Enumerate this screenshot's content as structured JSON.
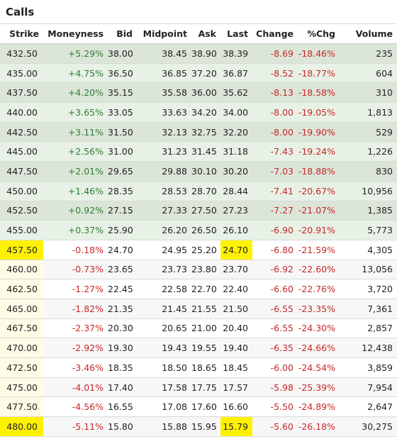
{
  "title": "Calls",
  "columns": [
    "Strike",
    "Moneyness",
    "Bid",
    "Midpoint",
    "Ask",
    "Last",
    "Change",
    "%Chg",
    "Volume"
  ],
  "rows": [
    {
      "strike": "432.50",
      "moneyness": "+5.29%",
      "bid": "38.00",
      "mid": "38.45",
      "ask": "38.90",
      "last": "38.39",
      "change": "-8.69",
      "pct": "-18.46%",
      "volume": "235",
      "itm": true
    },
    {
      "strike": "435.00",
      "moneyness": "+4.75%",
      "bid": "36.50",
      "mid": "36.85",
      "ask": "37.20",
      "last": "36.87",
      "change": "-8.52",
      "pct": "-18.77%",
      "volume": "604",
      "itm": true
    },
    {
      "strike": "437.50",
      "moneyness": "+4.20%",
      "bid": "35.15",
      "mid": "35.58",
      "ask": "36.00",
      "last": "35.62",
      "change": "-8.13",
      "pct": "-18.58%",
      "volume": "310",
      "itm": true
    },
    {
      "strike": "440.00",
      "moneyness": "+3.65%",
      "bid": "33.05",
      "mid": "33.63",
      "ask": "34.20",
      "last": "34.00",
      "change": "-8.00",
      "pct": "-19.05%",
      "volume": "1,813",
      "itm": true
    },
    {
      "strike": "442.50",
      "moneyness": "+3.11%",
      "bid": "31.50",
      "mid": "32.13",
      "ask": "32.75",
      "last": "32.20",
      "change": "-8.00",
      "pct": "-19.90%",
      "volume": "529",
      "itm": true
    },
    {
      "strike": "445.00",
      "moneyness": "+2.56%",
      "bid": "31.00",
      "mid": "31.23",
      "ask": "31.45",
      "last": "31.18",
      "change": "-7.43",
      "pct": "-19.24%",
      "volume": "1,226",
      "itm": true
    },
    {
      "strike": "447.50",
      "moneyness": "+2.01%",
      "bid": "29.65",
      "mid": "29.88",
      "ask": "30.10",
      "last": "30.20",
      "change": "-7.03",
      "pct": "-18.88%",
      "volume": "830",
      "itm": true
    },
    {
      "strike": "450.00",
      "moneyness": "+1.46%",
      "bid": "28.35",
      "mid": "28.53",
      "ask": "28.70",
      "last": "28.44",
      "change": "-7.41",
      "pct": "-20.67%",
      "volume": "10,956",
      "itm": true
    },
    {
      "strike": "452.50",
      "moneyness": "+0.92%",
      "bid": "27.15",
      "mid": "27.33",
      "ask": "27.50",
      "last": "27.23",
      "change": "-7.27",
      "pct": "-21.07%",
      "volume": "1,385",
      "itm": true
    },
    {
      "strike": "455.00",
      "moneyness": "+0.37%",
      "bid": "25.90",
      "mid": "26.20",
      "ask": "26.50",
      "last": "26.10",
      "change": "-6.90",
      "pct": "-20.91%",
      "volume": "5,773",
      "itm": true
    },
    {
      "strike": "457.50",
      "moneyness": "-0.18%",
      "bid": "24.70",
      "mid": "24.95",
      "ask": "25.20",
      "last": "24.70",
      "change": "-6.80",
      "pct": "-21.59%",
      "volume": "4,305",
      "itm": false,
      "highlight": true
    },
    {
      "strike": "460.00",
      "moneyness": "-0.73%",
      "bid": "23.65",
      "mid": "23.73",
      "ask": "23.80",
      "last": "23.70",
      "change": "-6.92",
      "pct": "-22.60%",
      "volume": "13,056",
      "itm": false
    },
    {
      "strike": "462.50",
      "moneyness": "-1.27%",
      "bid": "22.45",
      "mid": "22.58",
      "ask": "22.70",
      "last": "22.40",
      "change": "-6.60",
      "pct": "-22.76%",
      "volume": "3,720",
      "itm": false
    },
    {
      "strike": "465.00",
      "moneyness": "-1.82%",
      "bid": "21.35",
      "mid": "21.45",
      "ask": "21.55",
      "last": "21.50",
      "change": "-6.55",
      "pct": "-23.35%",
      "volume": "7,361",
      "itm": false
    },
    {
      "strike": "467.50",
      "moneyness": "-2.37%",
      "bid": "20.30",
      "mid": "20.65",
      "ask": "21.00",
      "last": "20.40",
      "change": "-6.55",
      "pct": "-24.30%",
      "volume": "2,857",
      "itm": false
    },
    {
      "strike": "470.00",
      "moneyness": "-2.92%",
      "bid": "19.30",
      "mid": "19.43",
      "ask": "19.55",
      "last": "19.40",
      "change": "-6.35",
      "pct": "-24.66%",
      "volume": "12,438",
      "itm": false
    },
    {
      "strike": "472.50",
      "moneyness": "-3.46%",
      "bid": "18.35",
      "mid": "18.50",
      "ask": "18.65",
      "last": "18.45",
      "change": "-6.00",
      "pct": "-24.54%",
      "volume": "3,859",
      "itm": false
    },
    {
      "strike": "475.00",
      "moneyness": "-4.01%",
      "bid": "17.40",
      "mid": "17.58",
      "ask": "17.75",
      "last": "17.57",
      "change": "-5.98",
      "pct": "-25.39%",
      "volume": "7,954",
      "itm": false
    },
    {
      "strike": "477.50",
      "moneyness": "-4.56%",
      "bid": "16.55",
      "mid": "17.08",
      "ask": "17.60",
      "last": "16.60",
      "change": "-5.50",
      "pct": "-24.89%",
      "volume": "2,647",
      "itm": false
    },
    {
      "strike": "480.00",
      "moneyness": "-5.11%",
      "bid": "15.80",
      "mid": "15.88",
      "ask": "15.95",
      "last": "15.79",
      "change": "-5.60",
      "pct": "-26.18%",
      "volume": "30,275",
      "itm": false,
      "highlight": true
    }
  ],
  "colors": {
    "positive": "#2e7d32",
    "negative": "#c62828",
    "itm_row": "#dbe6d9",
    "itm_row_alt": "#e8f1e6",
    "highlight": "#fff200"
  }
}
